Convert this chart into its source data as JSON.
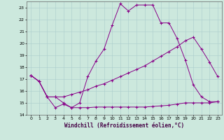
{
  "xlabel": "Windchill (Refroidissement éolien,°C)",
  "background_color": "#cce8dd",
  "grid_color": "#aacccc",
  "line_color": "#880088",
  "xlim": [
    -0.5,
    23.5
  ],
  "ylim": [
    14,
    23.5
  ],
  "yticks": [
    14,
    15,
    16,
    17,
    18,
    19,
    20,
    21,
    22,
    23
  ],
  "xticks": [
    0,
    1,
    2,
    3,
    4,
    5,
    6,
    7,
    8,
    9,
    10,
    11,
    12,
    13,
    14,
    15,
    16,
    17,
    18,
    19,
    20,
    21,
    22,
    23
  ],
  "series": [
    {
      "x": [
        0,
        1,
        2,
        3,
        4,
        5,
        6,
        7,
        8,
        9,
        10,
        11,
        12,
        13,
        14,
        15,
        16,
        17,
        18,
        19,
        20,
        21,
        22,
        23
      ],
      "y": [
        17.3,
        16.8,
        15.5,
        14.6,
        14.9,
        14.6,
        14.6,
        14.6,
        14.65,
        14.65,
        14.65,
        14.65,
        14.65,
        14.65,
        14.65,
        14.7,
        14.75,
        14.8,
        14.9,
        15.0,
        15.0,
        15.0,
        15.0,
        15.1
      ]
    },
    {
      "x": [
        0,
        1,
        2,
        3,
        4,
        5,
        6,
        7,
        8,
        9,
        10,
        11,
        12,
        13,
        14,
        15,
        16,
        17,
        18,
        19,
        20,
        21,
        22,
        23
      ],
      "y": [
        17.3,
        16.8,
        15.5,
        15.5,
        15.5,
        15.7,
        15.9,
        16.1,
        16.4,
        16.6,
        16.9,
        17.2,
        17.5,
        17.8,
        18.1,
        18.5,
        18.9,
        19.3,
        19.7,
        20.2,
        20.5,
        19.5,
        18.4,
        17.2
      ]
    },
    {
      "x": [
        0,
        1,
        2,
        3,
        4,
        5,
        6,
        7,
        8,
        9,
        10,
        11,
        12,
        13,
        14,
        15,
        16,
        17,
        18,
        19,
        20,
        21,
        22,
        23
      ],
      "y": [
        17.3,
        16.8,
        15.5,
        15.5,
        15.0,
        14.6,
        15.0,
        17.2,
        18.5,
        19.5,
        21.5,
        23.3,
        22.7,
        23.2,
        23.2,
        23.2,
        21.7,
        21.7,
        20.4,
        18.6,
        16.5,
        15.5,
        15.1,
        15.1
      ]
    }
  ],
  "figsize": [
    3.2,
    2.0
  ],
  "dpi": 100
}
